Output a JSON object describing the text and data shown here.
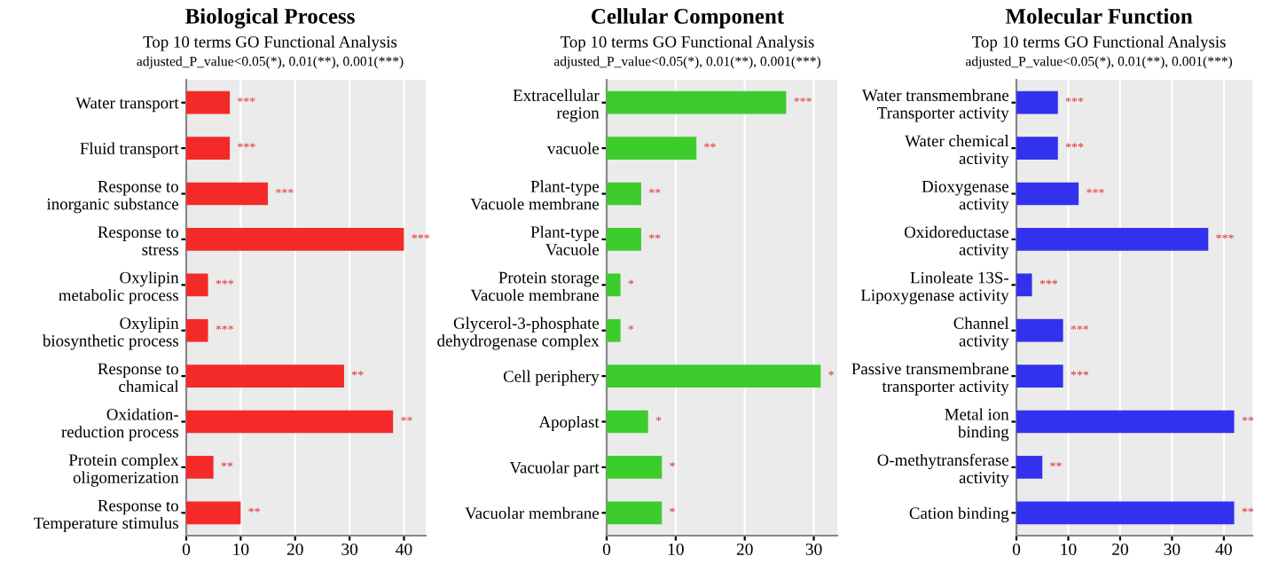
{
  "chart_data": [
    {
      "type": "bar",
      "orientation": "horizontal",
      "title": "Biological Process",
      "subtitle": "Top 10 terms GO Functional Analysis",
      "annotations": [
        "adjusted_P_value<0.05(*), 0.01(**), 0.001(***)"
      ],
      "categories": [
        "Water transport",
        "Fluid transport",
        "Response to\ninorganic substance",
        "Response to\nstress",
        "Oxylipin\nmetabolic process",
        "Oxylipin\nbiosynthetic process",
        "Response to\nchamical",
        "Oxidation-\nreduction process",
        "Protein complex\noligomerization",
        "Response to\nTemperature stimulus"
      ],
      "values": [
        8,
        8,
        15,
        40,
        4,
        4,
        29,
        38,
        5,
        10
      ],
      "color": "#f42a2a",
      "value_labels": [
        "***",
        "***",
        "***",
        "***",
        "***",
        "***",
        "**",
        "**",
        "**",
        "**"
      ],
      "xlim": [
        0,
        44
      ],
      "xticks": [
        0,
        10,
        20,
        30,
        40
      ],
      "grid": "x"
    },
    {
      "type": "bar",
      "orientation": "horizontal",
      "title": "Cellular Component",
      "subtitle": "Top 10 terms GO Functional Analysis",
      "annotations": [
        "adjusted_P_value<0.05(*), 0.01(**), 0.001(***)"
      ],
      "categories": [
        "Extracellular\nregion",
        "vacuole",
        "Plant-type\nVacuole membrane",
        "Plant-type\nVacuole",
        "Protein storage\nVacuole membrane",
        "Glycerol-3-phosphate\ndehydrogenase complex",
        "Cell periphery",
        "Apoplast",
        "Vacuolar part",
        "Vacuolar membrane"
      ],
      "values": [
        26,
        13,
        5,
        5,
        2,
        2,
        31,
        6,
        8,
        8
      ],
      "color": "#3ccc2c",
      "value_labels": [
        "***",
        "**",
        "**",
        "**",
        "*",
        "*",
        "*",
        "*",
        "*",
        "*"
      ],
      "xlim": [
        0,
        33.4
      ],
      "xticks": [
        0,
        10,
        20,
        30
      ],
      "grid": "x"
    },
    {
      "type": "bar",
      "orientation": "horizontal",
      "title": "Molecular Function",
      "subtitle": "Top 10 terms GO Functional Analysis",
      "annotations": [
        "adjusted_P_value<0.05(*), 0.01(**), 0.001(***)"
      ],
      "categories": [
        "Water transmembrane\nTransporter activity",
        "Water chemical\nactivity",
        "Dioxygenase\nactivity",
        "Oxidoreductase\nactivity",
        "Linoleate 13S-\nLipoxygenase activity",
        "Channel\nactivity",
        "Passive transmembrane\ntransporter activity",
        "Metal ion\nbinding",
        "O-methytransferase\nactivity",
        "Cation binding"
      ],
      "values": [
        8,
        8,
        12,
        37,
        3,
        9,
        9,
        42,
        5,
        42
      ],
      "color": "#3232ee",
      "value_labels": [
        "***",
        "***",
        "***",
        "***",
        "***",
        "***",
        "***",
        "**",
        "**",
        "**"
      ],
      "xlim": [
        0,
        45.5
      ],
      "xticks": [
        0,
        10,
        20,
        30,
        40
      ],
      "grid": "x"
    }
  ]
}
